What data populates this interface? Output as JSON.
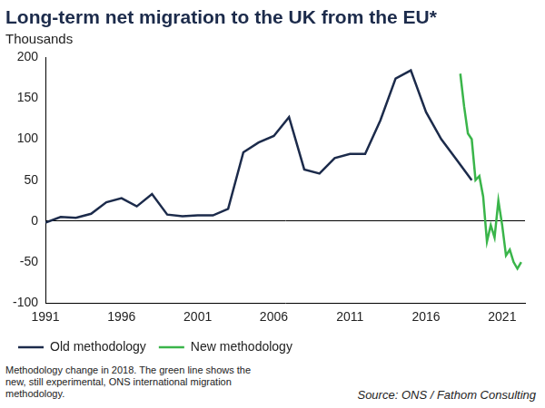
{
  "chart_data": {
    "type": "line",
    "title": "Long-term net migration to the UK from the EU*",
    "subtitle": "Thousands",
    "series": [
      {
        "name": "Old methodology",
        "color": "#1c2b4b",
        "marker": "none",
        "line_style": "solid",
        "x": [
          1991,
          1992,
          1993,
          1994,
          1995,
          1996,
          1997,
          1998,
          1999,
          2000,
          2001,
          2002,
          2003,
          2004,
          2005,
          2006,
          2007,
          2008,
          2009,
          2010,
          2011,
          2012,
          2013,
          2014,
          2015,
          2016,
          2017,
          2018,
          2019
        ],
        "values": [
          -2,
          5,
          4,
          9,
          23,
          28,
          18,
          33,
          8,
          6,
          7,
          7,
          15,
          84,
          96,
          104,
          127,
          63,
          58,
          77,
          82,
          82,
          123,
          174,
          184,
          133,
          100,
          75,
          50
        ]
      },
      {
        "name": "New methodology",
        "color": "#3ab54a",
        "marker": "none",
        "line_style": "solid",
        "x": [
          2018.25,
          2018.5,
          2018.75,
          2019,
          2019.25,
          2019.5,
          2019.75,
          2020,
          2020.25,
          2020.5,
          2020.75,
          2021,
          2021.25,
          2021.5,
          2021.75,
          2022,
          2022.25
        ],
        "values": [
          180,
          140,
          107,
          100,
          50,
          55,
          30,
          -25,
          -5,
          -20,
          25,
          -5,
          -42,
          -35,
          -50,
          -58,
          -50
        ]
      }
    ],
    "xlim": [
      1991,
      2022.5
    ],
    "xticks": [
      1991,
      1996,
      2001,
      2006,
      2011,
      2016,
      2021
    ],
    "ylim": [
      -100,
      200
    ],
    "yticks": [
      -100,
      -50,
      0,
      50,
      100,
      150,
      200
    ],
    "grid": false,
    "legend": "bottom-left",
    "footnote": [
      "Methodology change in 2018. The green line shows the",
      "new, still experimental, ONS international migration",
      "methodology."
    ],
    "source": "Source: ONS / Fathom Consulting"
  }
}
